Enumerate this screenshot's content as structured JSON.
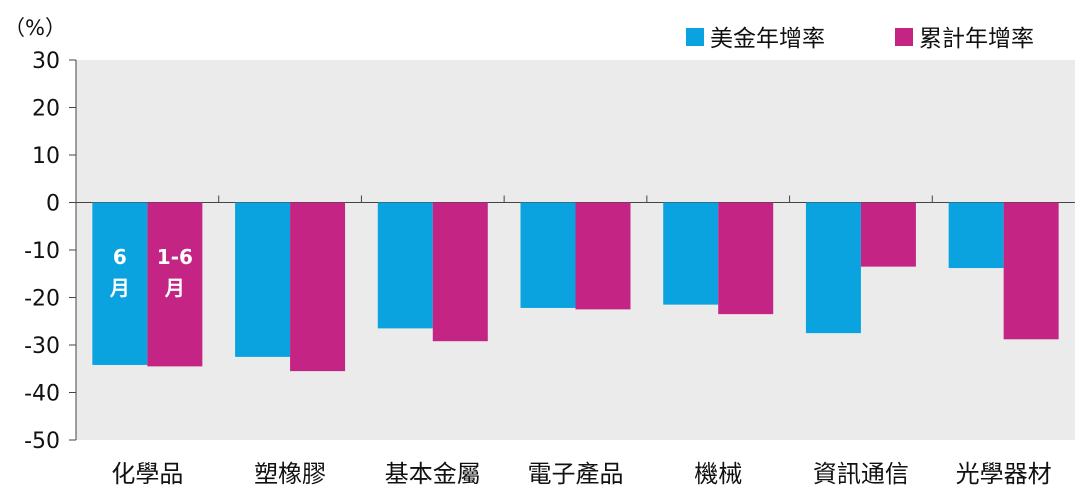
{
  "chart_data": {
    "type": "bar",
    "unit_label": "（%）",
    "categories": [
      "化學品",
      "塑橡膠",
      "基本金屬",
      "電子產品",
      "機械",
      "資訊通信",
      "光學器材"
    ],
    "series": [
      {
        "name": "美金年增率",
        "color": "#0aa3e0",
        "values": [
          -34.2,
          -32.5,
          -26.5,
          -22.2,
          -21.5,
          -27.5,
          -13.8
        ]
      },
      {
        "name": "累計年增率",
        "color": "#c42585",
        "values": [
          -34.5,
          -35.5,
          -29.2,
          -22.5,
          -23.5,
          -13.5,
          -28.8
        ]
      }
    ],
    "bar_annotations": [
      {
        "category": "化學品",
        "series": 0,
        "lines": [
          "6",
          "月"
        ]
      },
      {
        "category": "化學品",
        "series": 1,
        "lines": [
          "1-6",
          "月"
        ]
      }
    ],
    "ylim": [
      -50,
      30
    ],
    "yticks": [
      "30",
      "20",
      "10",
      "0",
      "-10",
      "-20",
      "-30",
      "-40",
      "-50"
    ],
    "grid": false,
    "plot_background": "#ebebeb",
    "legend_position": "top-right"
  }
}
